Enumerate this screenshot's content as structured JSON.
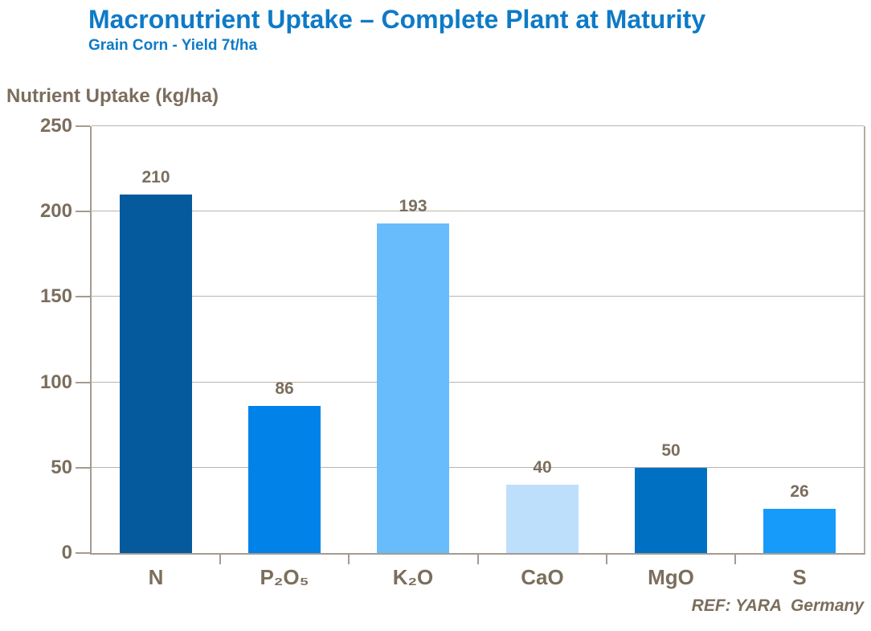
{
  "header": {
    "title": "Macronutrient Uptake – Complete Plant at Maturity",
    "subtitle": "Grain Corn - Yield 7t/ha"
  },
  "footer": {
    "source_note": "REF: YARA  Germany"
  },
  "style": {
    "title_color": "#0e7ac7",
    "text_color": "#7b6e5d",
    "gridline_color": "#bcb4aa",
    "axis_color": "#a59b91",
    "right_border_color": "#b5aca2",
    "background": "#ffffff"
  },
  "chart_data": {
    "type": "bar",
    "title": "Macronutrient Uptake – Complete Plant at Maturity",
    "subtitle": "Grain Corn - Yield 7t/ha",
    "ylabel": "Nutrient Uptake (kg/ha)",
    "xlabel": "",
    "categories": [
      "N",
      "P₂O₅",
      "K₂O",
      "CaO",
      "MgO",
      "S"
    ],
    "values": [
      210,
      86,
      193,
      40,
      50,
      26
    ],
    "bar_colors": [
      "#05599d",
      "#0082e8",
      "#69bcfb",
      "#bddffc",
      "#0071c2",
      "#169bfb"
    ],
    "yticks": [
      0,
      50,
      100,
      150,
      200,
      250
    ],
    "ylim": [
      0,
      250
    ],
    "grid": true,
    "legend_position": "none",
    "annotations": [
      "210",
      "86",
      "193",
      "40",
      "50",
      "26"
    ],
    "source_note": "REF: YARA  Germany"
  }
}
